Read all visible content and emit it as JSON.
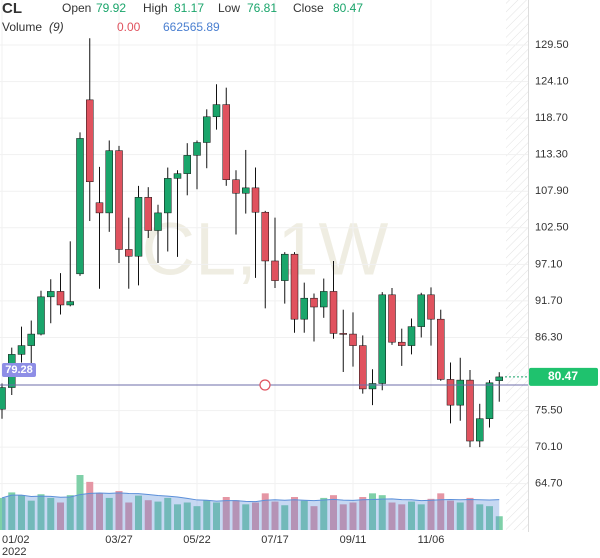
{
  "header": {
    "symbol": "CL",
    "open_label": "Open",
    "open": 79.92,
    "high_label": "High",
    "high": 81.17,
    "low_label": "Low",
    "low": 76.81,
    "close_label": "Close",
    "close": 80.47,
    "volume_label": "Volume",
    "volume_period": "(9)",
    "volume_change": "0.00",
    "volume_ma": "662565.89"
  },
  "chart_data": {
    "type": "candlestick",
    "watermark": "CL, 1W",
    "categories": [
      "01/02",
      null,
      null,
      null,
      null,
      null,
      null,
      null,
      null,
      null,
      null,
      null,
      "03/27",
      null,
      null,
      null,
      null,
      null,
      null,
      null,
      "05/22",
      null,
      null,
      null,
      null,
      null,
      null,
      null,
      "07/17",
      null,
      null,
      null,
      null,
      null,
      null,
      null,
      "09/11",
      null,
      null,
      null,
      null,
      null,
      null,
      null,
      "11/06",
      null,
      null,
      null,
      null,
      null,
      null,
      null
    ],
    "year_label": "2022",
    "open": [
      75.7,
      78.9,
      83.8,
      85.1,
      86.8,
      92.3,
      93.1,
      91.1,
      95.7,
      121.4,
      106.2,
      104.7,
      113.9,
      99.3,
      98.3,
      107.0,
      102.1,
      104.7,
      109.8,
      110.5,
      113.2,
      115.1,
      118.9,
      120.7,
      109.6,
      107.6,
      108.4,
      104.8,
      97.6,
      94.7,
      98.6,
      89.0,
      92.1,
      90.8,
      93.1,
      86.9,
      86.8,
      85.1,
      78.7,
      79.5,
      92.6,
      85.6,
      85.1,
      87.9,
      92.6,
      89.0,
      80.1,
      76.3,
      80.0,
      71.0,
      74.3,
      79.92
    ],
    "high": [
      79.5,
      84.8,
      87.9,
      88.8,
      93.2,
      94.9,
      95.8,
      100.5,
      116.6,
      130.5,
      111.5,
      115.4,
      114.6,
      104.0,
      108.7,
      108.5,
      105.9,
      111.4,
      111.0,
      115.0,
      115.4,
      120.0,
      123.7,
      123.2,
      111.0,
      114.0,
      111.4,
      105.0,
      104.0,
      98.9,
      98.9,
      94.4,
      92.8,
      95.0,
      97.6,
      90.4,
      90.0,
      86.6,
      81.6,
      93.0,
      93.6,
      87.6,
      89.1,
      92.9,
      93.7,
      90.4,
      82.6,
      83.3,
      81.5,
      76.5,
      80.0,
      81.17
    ],
    "low": [
      74.3,
      77.8,
      82.6,
      81.9,
      86.6,
      88.4,
      89.7,
      90.9,
      95.4,
      103.5,
      93.5,
      101.9,
      97.3,
      93.5,
      94.0,
      101.0,
      97.3,
      99.0,
      98.2,
      107.3,
      108.2,
      111.3,
      117.0,
      108.7,
      101.5,
      104.6,
      95.1,
      90.6,
      93.6,
      91.3,
      87.0,
      87.0,
      85.7,
      89.2,
      86.1,
      81.2,
      82.0,
      78.0,
      76.3,
      78.5,
      85.2,
      82.1,
      83.8,
      86.3,
      85.1,
      79.9,
      73.6,
      74.0,
      70.1,
      70.1,
      73.0,
      76.81
    ],
    "close": [
      78.9,
      83.8,
      85.1,
      86.8,
      92.3,
      93.1,
      91.1,
      91.6,
      115.7,
      109.3,
      104.7,
      113.9,
      99.3,
      98.3,
      107.0,
      102.1,
      104.7,
      109.8,
      110.5,
      113.2,
      115.1,
      118.9,
      120.7,
      109.6,
      107.6,
      108.4,
      104.8,
      97.6,
      94.7,
      98.6,
      89.0,
      92.1,
      90.8,
      93.1,
      86.9,
      86.8,
      85.1,
      78.7,
      79.5,
      92.6,
      85.6,
      85.1,
      87.9,
      92.6,
      89.0,
      80.1,
      76.3,
      80.0,
      71.0,
      74.3,
      79.6,
      80.47
    ],
    "volume": [
      700000,
      820000,
      760000,
      640000,
      780000,
      700000,
      600000,
      760000,
      1200000,
      1050000,
      800000,
      700000,
      850000,
      600000,
      750000,
      650000,
      620000,
      700000,
      560000,
      600000,
      520000,
      650000,
      600000,
      720000,
      650000,
      560000,
      600000,
      800000,
      620000,
      540000,
      720000,
      640000,
      520000,
      700000,
      760000,
      560000,
      600000,
      720000,
      800000,
      760000,
      600000,
      560000,
      620000,
      560000,
      680000,
      800000,
      640000,
      600000,
      700000,
      560000,
      520000,
      300000
    ],
    "volume_ma_values": [
      700000,
      760000,
      760000,
      730000,
      740000,
      733000,
      714000,
      720000,
      773000,
      800000,
      808000,
      798000,
      811000,
      797000,
      794000,
      775000,
      752000,
      740000,
      720000,
      690000,
      656000,
      650000,
      630000,
      640000,
      640000,
      625000,
      620000,
      650000,
      660000,
      650000,
      660000,
      650000,
      640000,
      655000,
      667000,
      651000,
      647000,
      660000,
      665000,
      675000,
      678000,
      664000,
      660000,
      640000,
      650000,
      660000,
      665000,
      660000,
      665000,
      660000,
      655000,
      662565.89
    ],
    "ylim": [
      56.38,
      136.15
    ],
    "yticks": [
      {
        "value": 129.5,
        "label": "129.50"
      },
      {
        "value": 124.1,
        "label": "124.10"
      },
      {
        "value": 118.7,
        "label": "118.70"
      },
      {
        "value": 113.3,
        "label": "113.30"
      },
      {
        "value": 107.9,
        "label": "107.90"
      },
      {
        "value": 102.5,
        "label": "102.50"
      },
      {
        "value": 97.1,
        "label": "97.10"
      },
      {
        "value": 91.7,
        "label": "91.70"
      },
      {
        "value": 86.3,
        "label": "86.30"
      },
      {
        "value": 75.5,
        "label": "75.50"
      },
      {
        "value": 70.1,
        "label": "70.10"
      },
      {
        "value": 64.7,
        "label": "64.70"
      }
    ],
    "last_price": {
      "value": 80.47,
      "label": "80.47"
    },
    "crosshair": {
      "value": 79.28,
      "label": "79.28"
    },
    "up_color": "#1aa56b",
    "down_color": "#e0525e",
    "volume_up_color": "#7fd0a8",
    "volume_down_color": "#e596a4",
    "volume_ma_color": "#5b8fd9",
    "grid": true
  }
}
